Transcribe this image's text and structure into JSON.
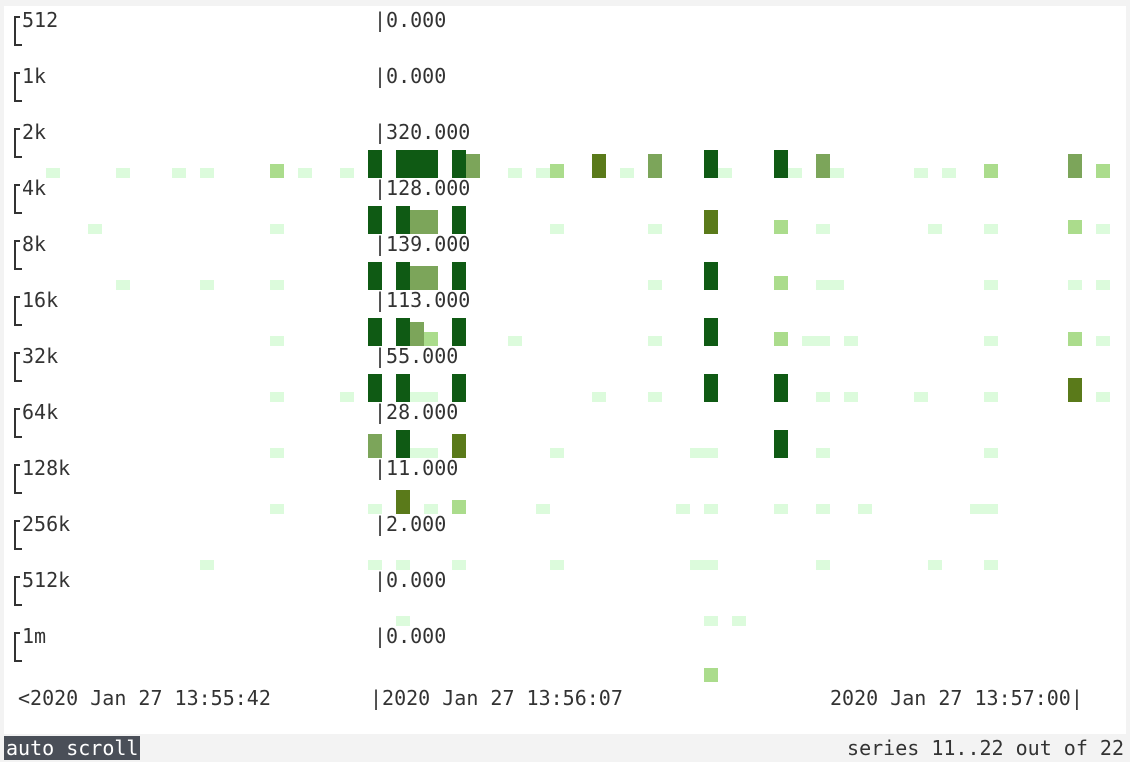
{
  "heatmap": {
    "buckets": [
      {
        "label": "512",
        "value": "|0.000"
      },
      {
        "label": "1k",
        "value": "|0.000"
      },
      {
        "label": "2k",
        "value": "|320.000"
      },
      {
        "label": "4k",
        "value": "|128.000"
      },
      {
        "label": "8k",
        "value": "|139.000"
      },
      {
        "label": "16k",
        "value": "|113.000"
      },
      {
        "label": "32k",
        "value": "|55.000"
      },
      {
        "label": "64k",
        "value": "|28.000"
      },
      {
        "label": "128k",
        "value": "|11.000"
      },
      {
        "label": "256k",
        "value": "|2.000"
      },
      {
        "label": "512k",
        "value": "|0.000"
      },
      {
        "label": "1m",
        "value": "|0.000"
      }
    ],
    "time_axis": {
      "start": "<2020 Jan 27 13:55:42",
      "cursor": "|2020 Jan 27 13:56:07",
      "end": "2020 Jan 27 13:57:00|"
    },
    "colors": {
      "c1": "#dcfbdc",
      "c2": "#abdc8c",
      "c3": "#7ca55a",
      "c4": "#5a7a1a",
      "c5": "#0f5a14"
    },
    "cells": [
      [
        2,
        46,
        1
      ],
      [
        2,
        116,
        1
      ],
      [
        2,
        172,
        1
      ],
      [
        2,
        200,
        1
      ],
      [
        2,
        270,
        2
      ],
      [
        2,
        298,
        1
      ],
      [
        2,
        340,
        1
      ],
      [
        2,
        368,
        5
      ],
      [
        2,
        396,
        5
      ],
      [
        2,
        410,
        5
      ],
      [
        2,
        424,
        5
      ],
      [
        2,
        452,
        5
      ],
      [
        2,
        466,
        3
      ],
      [
        2,
        508,
        1
      ],
      [
        2,
        536,
        1
      ],
      [
        2,
        550,
        2
      ],
      [
        2,
        592,
        4
      ],
      [
        2,
        620,
        1
      ],
      [
        2,
        648,
        3
      ],
      [
        2,
        704,
        5
      ],
      [
        2,
        718,
        1
      ],
      [
        2,
        774,
        5
      ],
      [
        2,
        788,
        1
      ],
      [
        2,
        816,
        3
      ],
      [
        2,
        830,
        1
      ],
      [
        2,
        914,
        1
      ],
      [
        2,
        942,
        1
      ],
      [
        2,
        984,
        2
      ],
      [
        2,
        1068,
        3
      ],
      [
        2,
        1096,
        2
      ],
      [
        3,
        88,
        1
      ],
      [
        3,
        270,
        1
      ],
      [
        3,
        368,
        5
      ],
      [
        3,
        396,
        5
      ],
      [
        3,
        410,
        3
      ],
      [
        3,
        424,
        3
      ],
      [
        3,
        452,
        5
      ],
      [
        3,
        550,
        1
      ],
      [
        3,
        648,
        1
      ],
      [
        3,
        704,
        4
      ],
      [
        3,
        774,
        2
      ],
      [
        3,
        816,
        1
      ],
      [
        3,
        928,
        1
      ],
      [
        3,
        984,
        1
      ],
      [
        3,
        1068,
        2
      ],
      [
        3,
        1096,
        1
      ],
      [
        4,
        116,
        1
      ],
      [
        4,
        200,
        1
      ],
      [
        4,
        270,
        1
      ],
      [
        4,
        368,
        5
      ],
      [
        4,
        396,
        5
      ],
      [
        4,
        410,
        3
      ],
      [
        4,
        424,
        3
      ],
      [
        4,
        452,
        5
      ],
      [
        4,
        648,
        1
      ],
      [
        4,
        704,
        5
      ],
      [
        4,
        774,
        2
      ],
      [
        4,
        816,
        1
      ],
      [
        4,
        830,
        1
      ],
      [
        4,
        984,
        1
      ],
      [
        4,
        1068,
        1
      ],
      [
        4,
        1096,
        1
      ],
      [
        5,
        270,
        1
      ],
      [
        5,
        368,
        5
      ],
      [
        5,
        396,
        5
      ],
      [
        5,
        410,
        3
      ],
      [
        5,
        424,
        2
      ],
      [
        5,
        452,
        5
      ],
      [
        5,
        508,
        1
      ],
      [
        5,
        648,
        1
      ],
      [
        5,
        704,
        5
      ],
      [
        5,
        774,
        2
      ],
      [
        5,
        802,
        1
      ],
      [
        5,
        816,
        1
      ],
      [
        5,
        844,
        1
      ],
      [
        5,
        984,
        1
      ],
      [
        5,
        1068,
        2
      ],
      [
        5,
        1096,
        1
      ],
      [
        6,
        270,
        1
      ],
      [
        6,
        340,
        1
      ],
      [
        6,
        368,
        5
      ],
      [
        6,
        396,
        5
      ],
      [
        6,
        410,
        1
      ],
      [
        6,
        424,
        1
      ],
      [
        6,
        452,
        5
      ],
      [
        6,
        592,
        1
      ],
      [
        6,
        648,
        1
      ],
      [
        6,
        704,
        5
      ],
      [
        6,
        774,
        5
      ],
      [
        6,
        816,
        1
      ],
      [
        6,
        844,
        1
      ],
      [
        6,
        914,
        1
      ],
      [
        6,
        984,
        1
      ],
      [
        6,
        1068,
        4
      ],
      [
        6,
        1096,
        1
      ],
      [
        7,
        270,
        1
      ],
      [
        7,
        368,
        3
      ],
      [
        7,
        396,
        5
      ],
      [
        7,
        410,
        1
      ],
      [
        7,
        424,
        1
      ],
      [
        7,
        452,
        4
      ],
      [
        7,
        550,
        1
      ],
      [
        7,
        690,
        1
      ],
      [
        7,
        704,
        1
      ],
      [
        7,
        774,
        5
      ],
      [
        7,
        816,
        1
      ],
      [
        7,
        984,
        1
      ],
      [
        8,
        270,
        1
      ],
      [
        8,
        368,
        1
      ],
      [
        8,
        396,
        4
      ],
      [
        8,
        424,
        1
      ],
      [
        8,
        452,
        2
      ],
      [
        8,
        536,
        1
      ],
      [
        8,
        676,
        1
      ],
      [
        8,
        704,
        1
      ],
      [
        8,
        774,
        1
      ],
      [
        8,
        816,
        1
      ],
      [
        8,
        858,
        1
      ],
      [
        8,
        970,
        1
      ],
      [
        8,
        984,
        1
      ],
      [
        9,
        200,
        1
      ],
      [
        9,
        368,
        1
      ],
      [
        9,
        396,
        1
      ],
      [
        9,
        452,
        1
      ],
      [
        9,
        550,
        1
      ],
      [
        9,
        690,
        1
      ],
      [
        9,
        704,
        1
      ],
      [
        9,
        816,
        1
      ],
      [
        9,
        928,
        1
      ],
      [
        9,
        984,
        1
      ],
      [
        10,
        396,
        1
      ],
      [
        10,
        704,
        1
      ],
      [
        10,
        732,
        1
      ],
      [
        11,
        704,
        2
      ]
    ]
  },
  "status": {
    "auto_scroll": "auto scroll",
    "series_info": "series 11..22 out of 22"
  }
}
